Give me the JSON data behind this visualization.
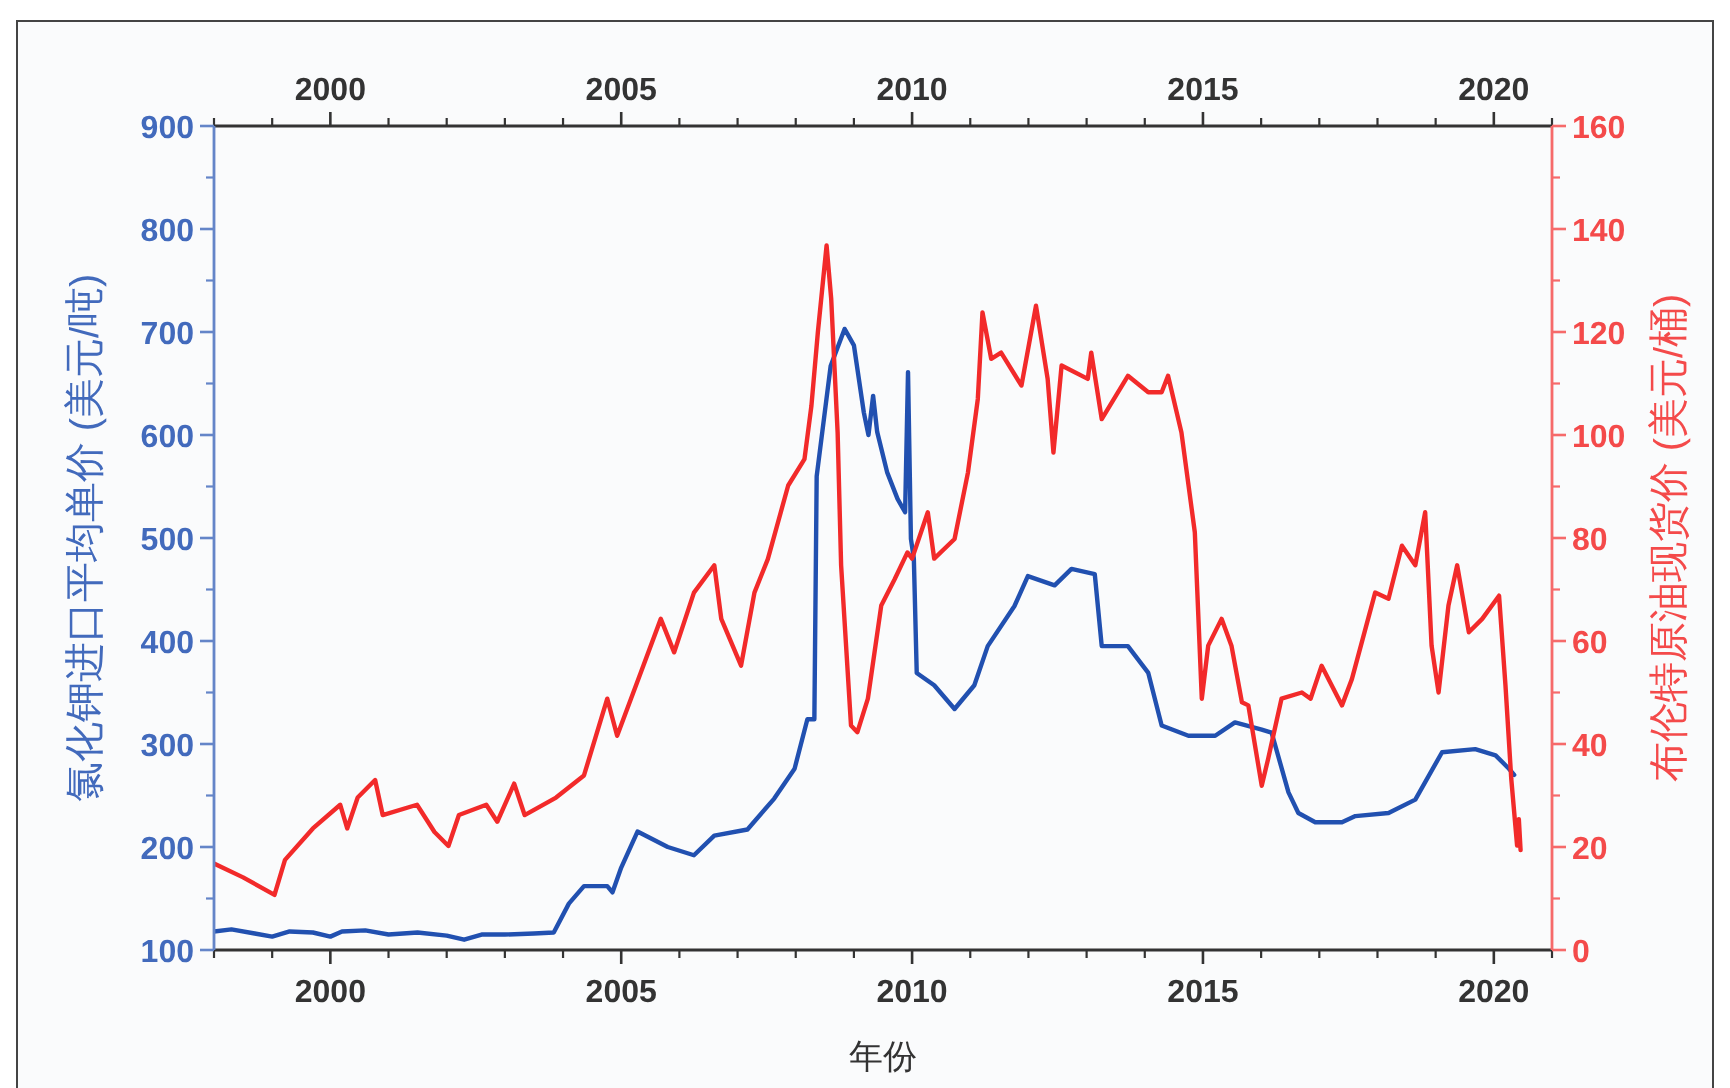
{
  "chart_data": {
    "type": "line",
    "xlabel": "年份",
    "ylabel": "氯化钾进口平均单价 (美元/吨)",
    "y2label": "布伦特原油现货价 (美元/桶)",
    "xlim": [
      1998,
      2021
    ],
    "xticks": [
      2000,
      2005,
      2010,
      2015,
      2020
    ],
    "x2lim": [
      1998,
      2021
    ],
    "x2ticks": [
      2000,
      2005,
      2010,
      2015,
      2020
    ],
    "ylim": [
      100,
      900
    ],
    "yticks": [
      100,
      200,
      300,
      400,
      500,
      600,
      700,
      800,
      900
    ],
    "y2lim": [
      0,
      160
    ],
    "y2ticks": [
      0,
      20,
      40,
      60,
      80,
      100,
      120,
      140,
      160
    ],
    "series": [
      {
        "color": "#2150b0",
        "x": [
          1998.0,
          1998.3,
          1998.7,
          1999.0,
          1999.3,
          1999.7,
          2000.0,
          2000.2,
          2000.6,
          2001.0,
          2001.5,
          2002.0,
          2002.3,
          2002.6,
          2003.0,
          2003.5,
          2003.84,
          2004.1,
          2004.36,
          2004.76,
          2004.85,
          2005.0,
          2005.28,
          2005.8,
          2006.25,
          2006.6,
          2007.17,
          2007.63,
          2007.98,
          2008.2,
          2008.32,
          2008.36,
          2008.6,
          2008.84,
          2009.0,
          2009.17,
          2009.25,
          2009.33,
          2009.4,
          2009.57,
          2009.75,
          2009.88,
          2009.93,
          2009.98,
          2010.03,
          2010.08,
          2010.38,
          2010.73,
          2011.07,
          2011.3,
          2011.76,
          2011.99,
          2012.45,
          2012.74,
          2013.14,
          2013.26,
          2013.71,
          2014.06,
          2014.29,
          2014.75,
          2015.21,
          2015.55,
          2016.01,
          2016.18,
          2016.47,
          2016.64,
          2016.93,
          2017.39,
          2017.62,
          2018.19,
          2018.65,
          2019.11,
          2019.68,
          2020.03,
          2020.26,
          2020.35
        ],
        "values": [
          118,
          120,
          116,
          113,
          118,
          117,
          113,
          118,
          119,
          115,
          117,
          114,
          110,
          115,
          115,
          116,
          117,
          145,
          162,
          162,
          156,
          180,
          215,
          200,
          192,
          211,
          217,
          247,
          276,
          324,
          324,
          560,
          667,
          703,
          687,
          622,
          600,
          638,
          603,
          564,
          538,
          525,
          661,
          499,
          480,
          369,
          357,
          334,
          357,
          395,
          434,
          463,
          454,
          470,
          465,
          395,
          395,
          369,
          318,
          308,
          308,
          321,
          314,
          311,
          253,
          233,
          224,
          224,
          230,
          233,
          246,
          292,
          295,
          289,
          276,
          270
        ]
      },
      {
        "color": "#f22a2a",
        "axis": "y2",
        "x": [
          1998.0,
          1998.5,
          1999.04,
          1999.22,
          1999.7,
          2000.17,
          2000.29,
          2000.47,
          2000.77,
          2000.9,
          2001.49,
          2001.79,
          2002.03,
          2002.21,
          2002.68,
          2002.87,
          2003.16,
          2003.34,
          2003.88,
          2004.36,
          2004.76,
          2004.93,
          2005.34,
          2005.68,
          2005.91,
          2006.25,
          2006.6,
          2006.72,
          2007.06,
          2007.29,
          2007.52,
          2007.87,
          2008.15,
          2008.27,
          2008.38,
          2008.53,
          2008.61,
          2008.72,
          2008.78,
          2008.95,
          2009.06,
          2009.24,
          2009.47,
          2009.7,
          2009.92,
          2010.0,
          2010.27,
          2010.38,
          2010.73,
          2010.96,
          2011.13,
          2011.21,
          2011.36,
          2011.53,
          2011.88,
          2012.13,
          2012.33,
          2012.43,
          2012.57,
          2013.02,
          2013.08,
          2013.26,
          2013.71,
          2014.06,
          2014.29,
          2014.4,
          2014.63,
          2014.86,
          2014.98,
          2015.09,
          2015.32,
          2015.49,
          2015.67,
          2015.78,
          2016.01,
          2016.12,
          2016.35,
          2016.7,
          2016.85,
          2017.04,
          2017.39,
          2017.56,
          2017.96,
          2018.19,
          2018.42,
          2018.65,
          2018.82,
          2018.93,
          2019.05,
          2019.22,
          2019.37,
          2019.57,
          2019.8,
          2020.09,
          2020.2,
          2020.3,
          2020.4,
          2020.43,
          2020.46
        ],
        "values": [
          16.8,
          14.1,
          10.7,
          17.5,
          23.6,
          28.2,
          23.6,
          29.6,
          33.0,
          26.2,
          28.2,
          22.9,
          20.2,
          26.2,
          28.2,
          24.9,
          32.3,
          26.2,
          29.6,
          33.9,
          48.8,
          41.6,
          54.0,
          64.3,
          57.8,
          69.4,
          74.7,
          64.3,
          55.2,
          69.4,
          75.9,
          90.2,
          95.3,
          105.7,
          119.9,
          136.8,
          126.4,
          100.5,
          74.7,
          43.6,
          42.3,
          48.8,
          66.9,
          72.0,
          77.2,
          76.0,
          85.0,
          76.0,
          79.8,
          92.7,
          107.0,
          123.8,
          114.8,
          116.0,
          109.6,
          125.1,
          110.9,
          96.6,
          113.5,
          110.9,
          116.0,
          103.1,
          111.5,
          108.3,
          108.3,
          111.5,
          100.5,
          81.1,
          48.8,
          59.1,
          64.3,
          59.1,
          48.1,
          47.5,
          31.9,
          37.1,
          48.8,
          50.0,
          48.8,
          55.2,
          47.5,
          52.6,
          69.4,
          68.2,
          78.5,
          74.7,
          85.0,
          59.1,
          50.0,
          66.9,
          74.7,
          61.7,
          64.3,
          68.8,
          51.4,
          33.2,
          20.3,
          25.4,
          19.4
        ]
      }
    ]
  }
}
